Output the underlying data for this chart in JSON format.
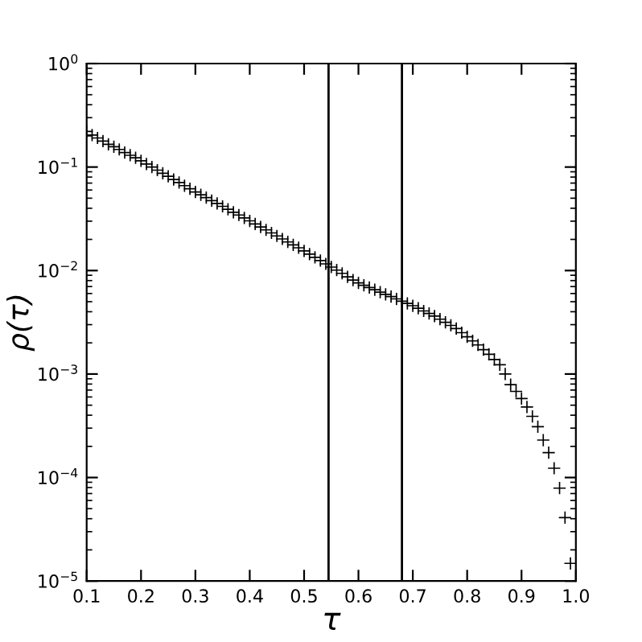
{
  "chart_data": {
    "type": "scatter",
    "xlabel": "τ",
    "ylabel": "ρ(τ)",
    "x": [
      0.1,
      0.11,
      0.12,
      0.13,
      0.14,
      0.15,
      0.16,
      0.17,
      0.18,
      0.19,
      0.2,
      0.21,
      0.22,
      0.23,
      0.24,
      0.25,
      0.26,
      0.27,
      0.28,
      0.29,
      0.3,
      0.31,
      0.32,
      0.33,
      0.34,
      0.35,
      0.36,
      0.37,
      0.38,
      0.39,
      0.4,
      0.41,
      0.42,
      0.43,
      0.44,
      0.45,
      0.46,
      0.47,
      0.48,
      0.49,
      0.5,
      0.51,
      0.52,
      0.53,
      0.54,
      0.55,
      0.56,
      0.57,
      0.58,
      0.59,
      0.6,
      0.61,
      0.62,
      0.63,
      0.64,
      0.65,
      0.66,
      0.67,
      0.68,
      0.69,
      0.7,
      0.71,
      0.72,
      0.73,
      0.74,
      0.75,
      0.76,
      0.77,
      0.78,
      0.79,
      0.8,
      0.81,
      0.82,
      0.83,
      0.84,
      0.85,
      0.86,
      0.87,
      0.88,
      0.89,
      0.9,
      0.91,
      0.92,
      0.93,
      0.94,
      0.95,
      0.96,
      0.97,
      0.98,
      0.99
    ],
    "series": [
      {
        "color": "#000000",
        "values": [
          0.221,
          0.204,
          0.191,
          0.178,
          0.166,
          0.157,
          0.148,
          0.138,
          0.13,
          0.123,
          0.115,
          0.107,
          0.1,
          0.0933,
          0.0871,
          0.0813,
          0.0759,
          0.0708,
          0.0661,
          0.0617,
          0.0575,
          0.054,
          0.0506,
          0.0474,
          0.0445,
          0.0417,
          0.0391,
          0.0366,
          0.0344,
          0.0322,
          0.0302,
          0.0282,
          0.0264,
          0.0247,
          0.0231,
          0.0216,
          0.0202,
          0.0189,
          0.0177,
          0.0166,
          0.0155,
          0.0144,
          0.0134,
          0.0125,
          0.0116,
          0.0108,
          0.0101,
          0.0094,
          0.0087,
          0.0081,
          0.0076,
          0.0072,
          0.00686,
          0.00652,
          0.00619,
          0.00589,
          0.0056,
          0.00532,
          0.00506,
          0.00481,
          0.00457,
          0.00432,
          0.00407,
          0.00385,
          0.00363,
          0.00339,
          0.00316,
          0.00295,
          0.00275,
          0.00251,
          0.00229,
          0.00209,
          0.00191,
          0.00172,
          0.00155,
          0.00138,
          0.00123,
          0.001,
          0.00079,
          0.00068,
          0.00058,
          0.00048,
          0.00039,
          0.00031,
          0.00023,
          0.000174,
          0.000123,
          7.9e-05,
          4.1e-05,
          1.48e-05
        ]
      }
    ],
    "marker": "cross",
    "log": "y",
    "grid": false,
    "legend": false,
    "xlim": [
      0.1,
      1.0
    ],
    "xticks": [
      0.1,
      0.2,
      0.3,
      0.4,
      0.5,
      0.6,
      0.7,
      0.8,
      0.9,
      {
        "value": 1.0,
        "label": "1.0"
      }
    ],
    "ylim": [
      1e-05,
      1
    ],
    "yticks": [
      {
        "value": 1e-05,
        "label": "10$^{−5}$"
      },
      {
        "value": 0.0001,
        "label": "10$^{−4}$"
      },
      {
        "value": 0.001,
        "label": "10$^{−3}$"
      },
      {
        "value": 0.01,
        "label": "10$^{−2}$"
      },
      {
        "value": 0.1,
        "label": "10$^{−1}$"
      },
      {
        "value": 1,
        "label": "10$^{0}$"
      }
    ],
    "ref_lines": [
      {
        "axis": "x",
        "value": 0.545,
        "color": "#000000",
        "line_style": "solid"
      },
      {
        "axis": "x",
        "value": 0.68,
        "color": "#000000",
        "line_style": "solid"
      }
    ]
  }
}
